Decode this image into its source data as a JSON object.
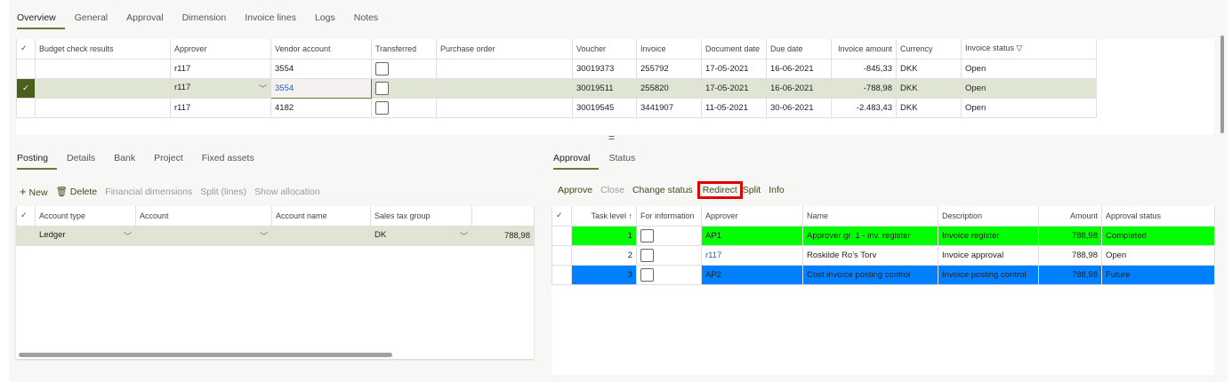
{
  "top_tabs": [
    "Overview",
    "General",
    "Approval",
    "Dimension",
    "Invoice lines",
    "Logs",
    "Notes"
  ],
  "invoice_grid": {
    "columns": [
      "Budget check results",
      "Approver",
      "Vendor account",
      "Transferred",
      "Purchase order",
      "Voucher",
      "Invoice",
      "Document date",
      "Due date",
      "Invoice amount",
      "Currency",
      "Invoice status"
    ],
    "rows": [
      {
        "budget": "",
        "approver": "r117",
        "vendor": "3554",
        "transferred": false,
        "po": "",
        "voucher": "30019373",
        "invoice": "255792",
        "doc_date": "17-05-2021",
        "due_date": "16-06-2021",
        "amount": "-845,33",
        "currency": "DKK",
        "status": "Open"
      },
      {
        "budget": "",
        "approver": "r117",
        "vendor": "3554",
        "transferred": false,
        "po": "",
        "voucher": "30019511",
        "invoice": "255820",
        "doc_date": "17-05-2021",
        "due_date": "16-06-2021",
        "amount": "-788,98",
        "currency": "DKK",
        "status": "Open",
        "selected": true
      },
      {
        "budget": "",
        "approver": "r117",
        "vendor": "4182",
        "transferred": false,
        "po": "",
        "voucher": "30019545",
        "invoice": "3441907",
        "doc_date": "11-05-2021",
        "due_date": "30-06-2021",
        "amount": "-2.483,43",
        "currency": "DKK",
        "status": "Open"
      }
    ]
  },
  "posting_tabs": [
    "Posting",
    "Details",
    "Bank",
    "Project",
    "Fixed assets"
  ],
  "posting_toolbar": {
    "new": "New",
    "delete": "Delete",
    "financial_dimensions": "Financial dimensions",
    "split_lines": "Split (lines)",
    "show_allocation": "Show allocation"
  },
  "posting_grid": {
    "columns": [
      "Account type",
      "Account",
      "Account name",
      "Sales tax group",
      ""
    ],
    "rows": [
      {
        "account_type": "Ledger",
        "account": "",
        "account_name": "",
        "sales_tax_group": "DK",
        "amount": "788,98"
      }
    ]
  },
  "approval_tabs": [
    "Approval",
    "Status"
  ],
  "approval_toolbar": {
    "approve": "Approve",
    "close": "Close",
    "change_status": "Change status",
    "redirect": "Redirect",
    "split": "Split",
    "info": "Info"
  },
  "approval_grid": {
    "columns": [
      "Task level",
      "For information",
      "Approver",
      "Name",
      "Description",
      "Amount",
      "Approval status"
    ],
    "rows": [
      {
        "level": "1",
        "approver": "AP1",
        "name": "Approver gr. 1 - inv. register",
        "description": "Invoice register",
        "amount": "788,98",
        "status": "Completed"
      },
      {
        "level": "2",
        "approver": "r117",
        "name": "Roskilde Ro's Torv",
        "description": "Invoice approval",
        "amount": "788,98",
        "status": "Open"
      },
      {
        "level": "3",
        "approver": "AP2",
        "name": "Cost invoice posting control",
        "description": "Invoice posting control",
        "amount": "788,98",
        "status": "Future"
      }
    ]
  },
  "colors": {
    "accent": "#6a7a3a",
    "selected_row": "#dfe5d2",
    "completed": "#00ff00",
    "future": "#0080ff",
    "highlight_box": "#e00000"
  }
}
